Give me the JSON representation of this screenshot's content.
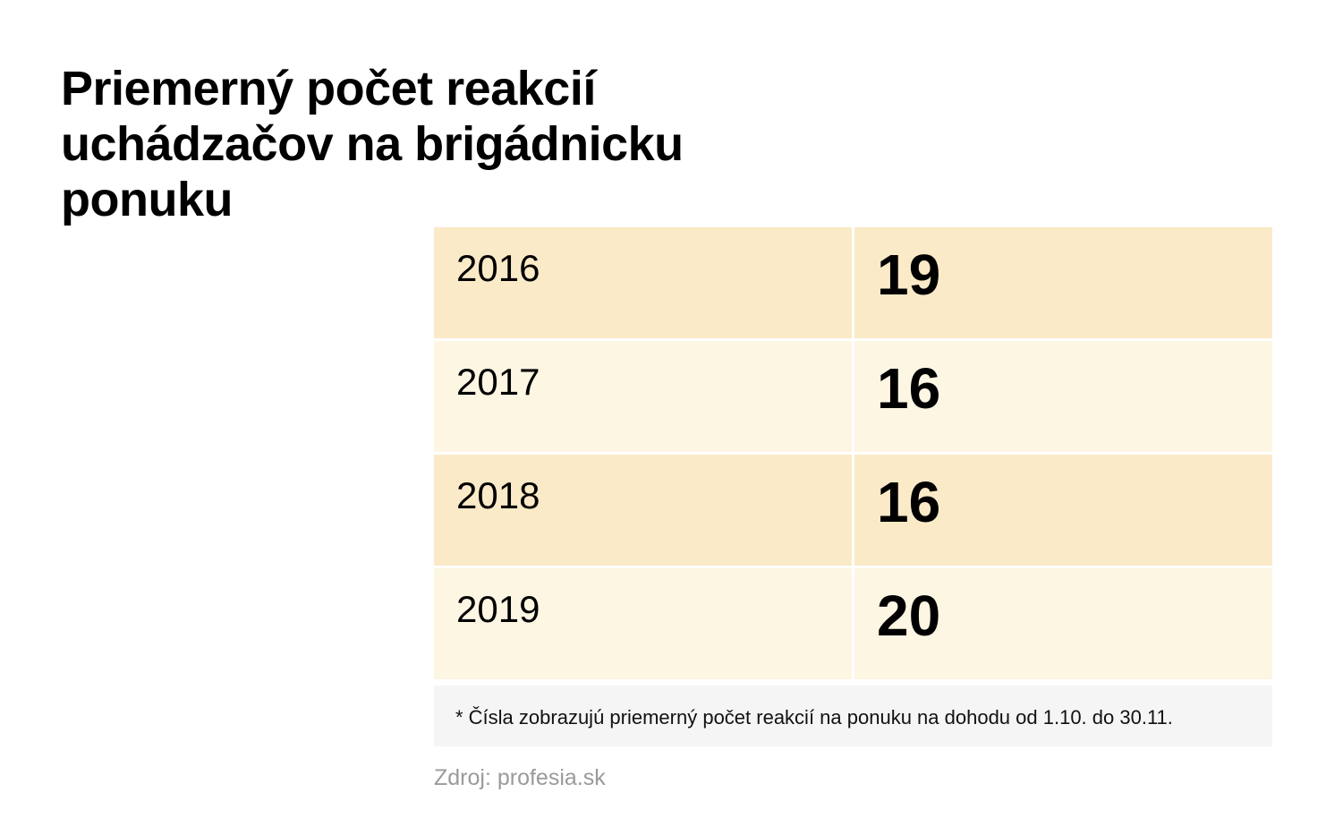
{
  "chart_data": {
    "type": "table",
    "title": "Priemerný počet reakcií uchádzačov na brigádnicku ponuku",
    "rows": [
      {
        "year": "2016",
        "value": 19
      },
      {
        "year": "2017",
        "value": 16
      },
      {
        "year": "2018",
        "value": 16
      },
      {
        "year": "2019",
        "value": 20
      }
    ],
    "footnote": "* Čísla zobrazujú priemerný počet reakcií na ponuku na dohodu od 1.10. do 30.11.",
    "source": "Zdroj: profesia.sk"
  },
  "colors": {
    "row_dark": "#faeac7",
    "row_light": "#fdf6e3",
    "footnote_bg": "#f5f5f5",
    "source_text": "#9a9a9a"
  }
}
